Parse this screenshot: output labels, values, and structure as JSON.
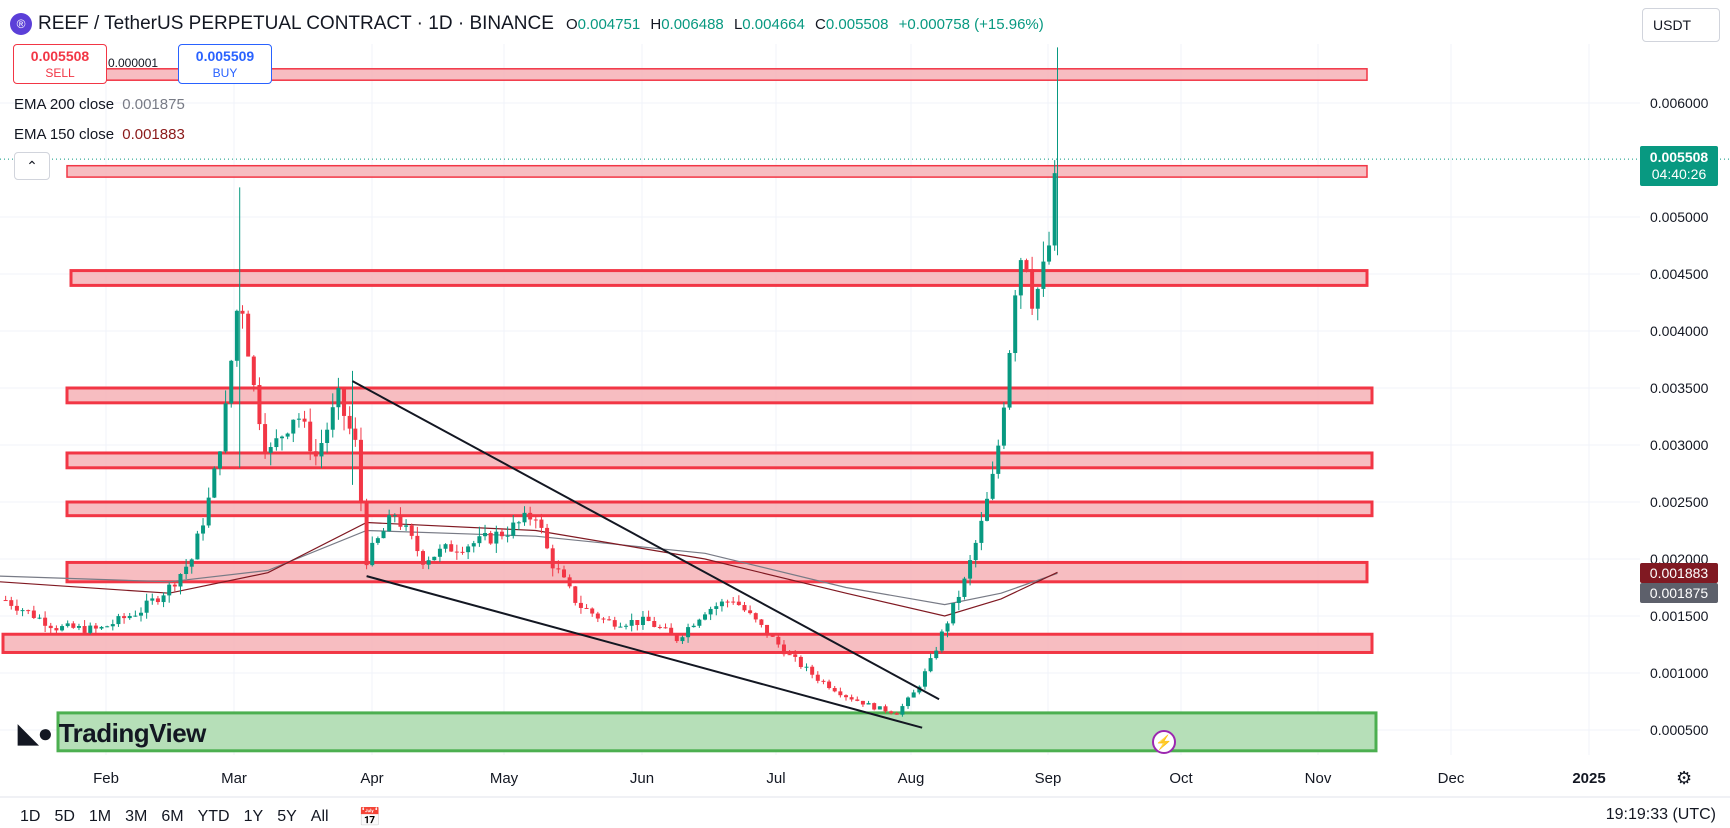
{
  "header": {
    "symbol_title": "REEF / TetherUS PERPETUAL CONTRACT · 1D · BINANCE",
    "logo_glyph": "®",
    "ohlc": [
      {
        "label": "O",
        "value": "0.004751"
      },
      {
        "label": "H",
        "value": "0.006488"
      },
      {
        "label": "L",
        "value": "0.004664"
      },
      {
        "label": "C",
        "value": "0.005508"
      }
    ],
    "change": "+0.000758 (+15.96%)"
  },
  "trade": {
    "sell_price": "0.005508",
    "sell_label": "SELL",
    "buy_price": "0.005509",
    "buy_label": "BUY",
    "spread": "0.000001"
  },
  "indicators": [
    {
      "label": "EMA 200 close",
      "value": "0.001875",
      "color": "#787b86"
    },
    {
      "label": "EMA 150 close",
      "value": "0.001883",
      "color": "#8b1a1a"
    }
  ],
  "currency": "USDT",
  "last_price": {
    "value": "0.005508",
    "countdown": "04:40:26",
    "color": "#089981"
  },
  "ema_tags": [
    {
      "value": "0.001883",
      "color": "#801922"
    },
    {
      "value": "0.001875",
      "color": "#5d606b"
    }
  ],
  "logo_text": "TradingView",
  "timeframes": [
    "1D",
    "5D",
    "1M",
    "3M",
    "6M",
    "YTD",
    "1Y",
    "5Y",
    "All"
  ],
  "clock": "19:19:33 (UTC)",
  "colors": {
    "up": "#089981",
    "down": "#f23645",
    "zone_fill": "#f6b2b6",
    "zone_stroke": "#f23645",
    "support_fill": "#b6dfb8",
    "support_stroke": "#4caf50"
  },
  "chart_data": {
    "type": "candlestick",
    "title": "REEF / TetherUS PERPETUAL CONTRACT · 1D · BINANCE",
    "x_ticks": [
      "Feb",
      "Mar",
      "Apr",
      "May",
      "Jun",
      "Jul",
      "Aug",
      "Sep",
      "Oct",
      "Nov",
      "Dec",
      "2025"
    ],
    "y_ticks": [
      "0.000500",
      "0.001000",
      "0.001500",
      "0.002000",
      "0.002500",
      "0.003000",
      "0.003500",
      "0.004000",
      "0.004500",
      "0.005000",
      "0.006000"
    ],
    "ylim": [
      0.0003,
      0.0066
    ],
    "price_path": [
      [
        0.5,
        0.0016
      ],
      [
        2.0,
        0.0014
      ],
      [
        3.5,
        0.00138
      ],
      [
        5.0,
        0.00155
      ],
      [
        6.0,
        0.00175
      ],
      [
        6.8,
        0.002
      ],
      [
        7.5,
        0.0026
      ],
      [
        8.0,
        0.0033
      ],
      [
        8.5,
        0.0044
      ],
      [
        9.0,
        0.0035
      ],
      [
        9.5,
        0.0029
      ],
      [
        10.5,
        0.0033
      ],
      [
        11.2,
        0.0029
      ],
      [
        12.0,
        0.0034
      ],
      [
        12.6,
        0.003
      ],
      [
        13.0,
        0.002
      ],
      [
        14.0,
        0.0024
      ],
      [
        15.0,
        0.002
      ],
      [
        16.0,
        0.0021
      ],
      [
        17.0,
        0.00215
      ],
      [
        18.0,
        0.00225
      ],
      [
        19.0,
        0.0024
      ],
      [
        19.5,
        0.002
      ],
      [
        20.5,
        0.0016
      ],
      [
        21.5,
        0.00145
      ],
      [
        23.0,
        0.00145
      ],
      [
        24.0,
        0.0013
      ],
      [
        25.0,
        0.00155
      ],
      [
        26.0,
        0.00165
      ],
      [
        27.0,
        0.0014
      ],
      [
        28.0,
        0.00115
      ],
      [
        29.0,
        0.00095
      ],
      [
        30.0,
        0.0008
      ],
      [
        31.0,
        0.0007
      ],
      [
        31.8,
        0.00065
      ],
      [
        32.5,
        0.00085
      ],
      [
        33.0,
        0.0011
      ],
      [
        33.5,
        0.0014
      ],
      [
        34.2,
        0.0018
      ],
      [
        34.8,
        0.0023
      ],
      [
        35.3,
        0.0028
      ],
      [
        35.7,
        0.0036
      ],
      [
        36.0,
        0.0044
      ],
      [
        36.3,
        0.0048
      ],
      [
        36.6,
        0.0043
      ],
      [
        36.9,
        0.0044
      ],
      [
        37.2,
        0.00475
      ],
      [
        37.5,
        0.005508
      ]
    ],
    "wick_extremes": [
      {
        "x": 8.5,
        "high": 0.00526,
        "low": 0.0028
      },
      {
        "x": 12.5,
        "high": 0.00365,
        "low": 0.00265
      },
      {
        "x": 37.5,
        "high": 0.006488,
        "low": 0.004664
      }
    ],
    "ema200": [
      [
        0.0,
        0.00185
      ],
      [
        6.0,
        0.0018
      ],
      [
        9.5,
        0.0019
      ],
      [
        13.0,
        0.00225
      ],
      [
        19.0,
        0.0022
      ],
      [
        25.0,
        0.00205
      ],
      [
        30.0,
        0.00175
      ],
      [
        33.5,
        0.0016
      ],
      [
        35.5,
        0.0017
      ],
      [
        37.5,
        0.001875
      ]
    ],
    "ema150": [
      [
        0.0,
        0.0018
      ],
      [
        6.0,
        0.0017
      ],
      [
        9.5,
        0.00188
      ],
      [
        13.0,
        0.00232
      ],
      [
        19.0,
        0.00225
      ],
      [
        25.0,
        0.002
      ],
      [
        30.0,
        0.0017
      ],
      [
        33.5,
        0.0015
      ],
      [
        35.5,
        0.00165
      ],
      [
        37.5,
        0.001883
      ]
    ],
    "resistance_zones": [
      {
        "from_x": 2.0,
        "to_x": 42.0,
        "low": 0.0062,
        "high": 0.0063
      },
      {
        "from_x": 2.0,
        "to_x": 42.0,
        "low": 0.00535,
        "high": 0.00545
      },
      {
        "from_x": 2.0,
        "to_x": 42.0,
        "low": 0.0044,
        "high": 0.00453
      },
      {
        "from_x": 2.0,
        "to_x": 42.0,
        "low": 0.00337,
        "high": 0.0035
      },
      {
        "from_x": 2.0,
        "to_x": 42.0,
        "low": 0.0028,
        "high": 0.00293
      },
      {
        "from_x": 2.0,
        "to_x": 42.0,
        "low": 0.00238,
        "high": 0.0025
      },
      {
        "from_x": 2.0,
        "to_x": 42.0,
        "low": 0.0018,
        "high": 0.00197
      },
      {
        "from_x": 0.0,
        "to_x": 42.0,
        "low": 0.00118,
        "high": 0.00134
      }
    ],
    "support_zone": {
      "from_x": 1.7,
      "to_x": 42.0,
      "low": 0.0003,
      "high": 0.00065
    },
    "trendlines": [
      {
        "x1": 12.5,
        "y1": 0.00356,
        "x2": 33.3,
        "y2": 0.00077
      },
      {
        "x1": 13.0,
        "y1": 0.00185,
        "x2": 32.7,
        "y2": 0.00052
      }
    ],
    "last_price": 0.005508
  }
}
